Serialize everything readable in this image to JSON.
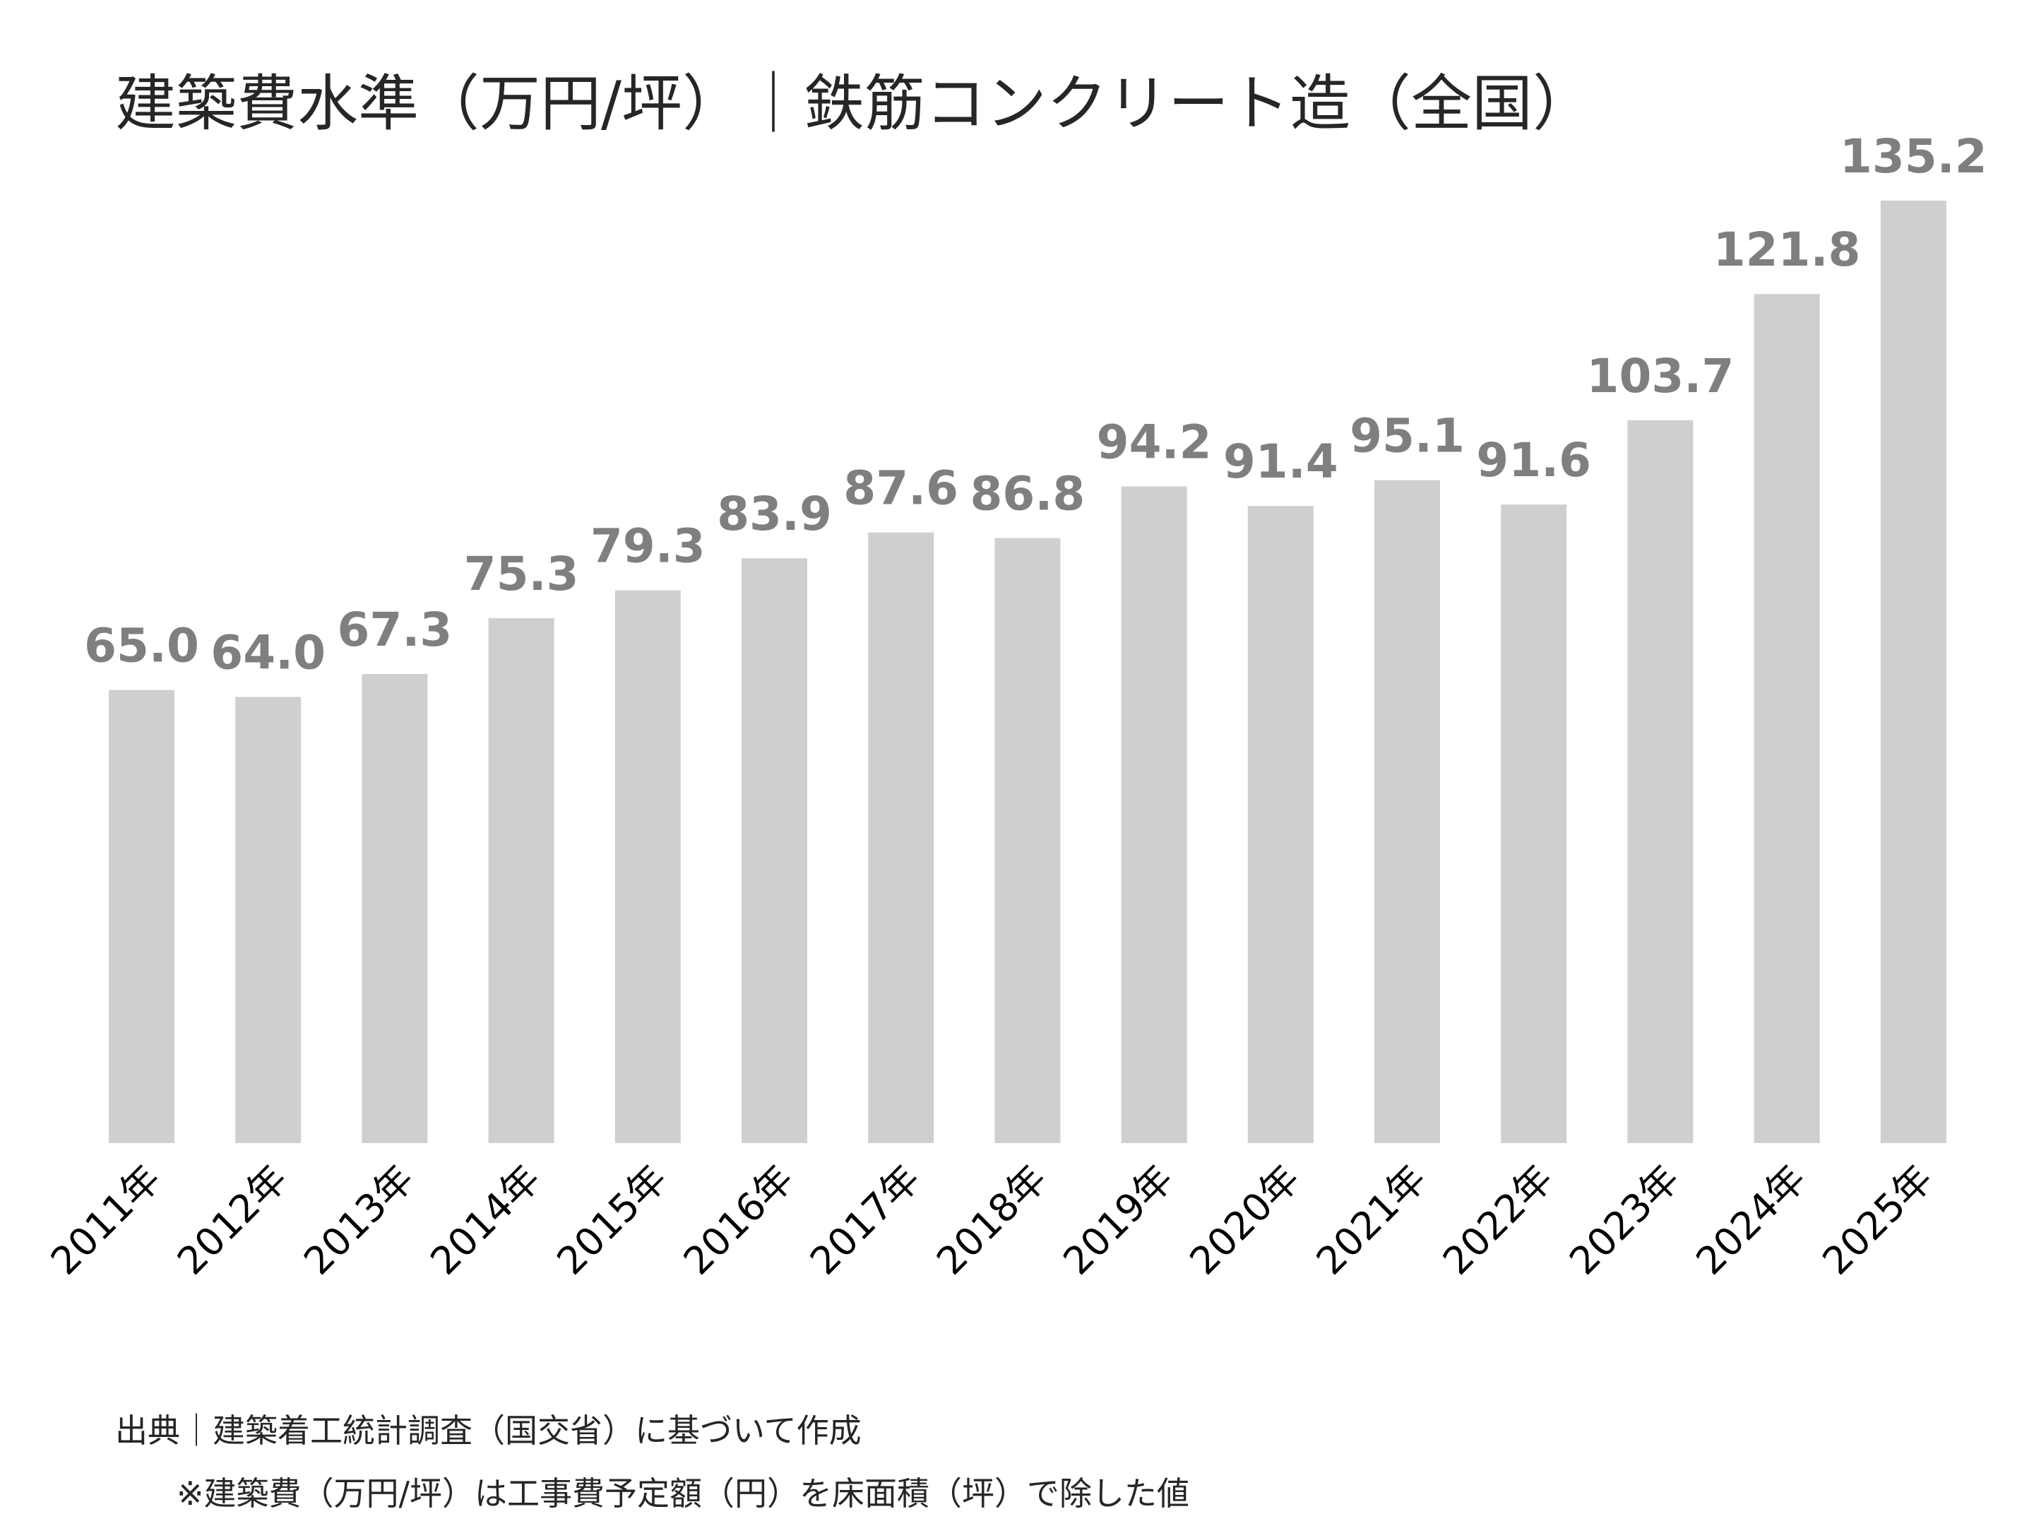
{
  "chart_data": {
    "type": "bar",
    "title": "建築費水準（万円/坪）｜鉄筋コンクリート造（全国）",
    "categories": [
      "2011年",
      "2012年",
      "2013年",
      "2014年",
      "2015年",
      "2016年",
      "2017年",
      "2018年",
      "2019年",
      "2020年",
      "2021年",
      "2022年",
      "2023年",
      "2024年",
      "2025年"
    ],
    "values": [
      65.0,
      64.0,
      67.3,
      75.3,
      79.3,
      83.9,
      87.6,
      86.8,
      94.2,
      91.4,
      95.1,
      91.6,
      103.7,
      121.8,
      135.2
    ],
    "value_labels": [
      "65.0",
      "64.0",
      "67.3",
      "75.3",
      "79.3",
      "83.9",
      "87.6",
      "86.8",
      "94.2",
      "91.4",
      "95.1",
      "91.6",
      "103.7",
      "121.8",
      "135.2"
    ],
    "xlabel": "",
    "ylabel": "",
    "ylim": [
      0,
      135.2
    ],
    "grid": false,
    "legend": "none",
    "colors": {
      "bar": "#d0cfd0",
      "value_label": "#7f7f7f"
    }
  },
  "footnotes": {
    "source": "出典｜建築着工統計調査（国交省）に基づいて作成",
    "note": "※建築費（万円/坪）は工事費予定額（円）を床面積（坪）で除した値"
  }
}
